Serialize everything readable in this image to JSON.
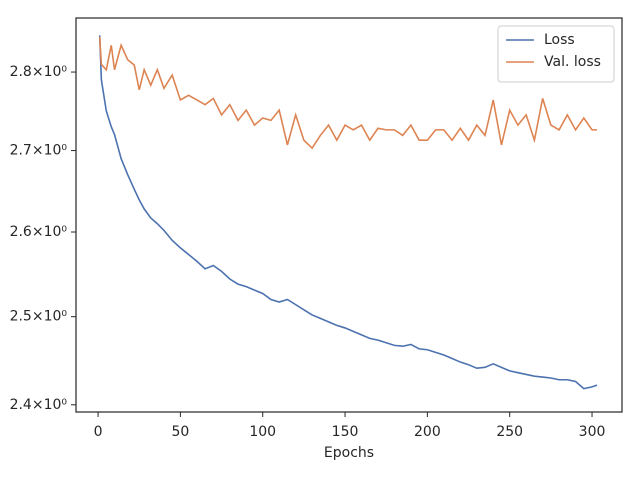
{
  "chart_data": {
    "type": "line",
    "xlabel": "Epochs",
    "x": [
      1,
      2,
      5,
      8,
      10,
      14,
      18,
      22,
      25,
      28,
      32,
      36,
      40,
      45,
      50,
      55,
      60,
      65,
      70,
      75,
      80,
      85,
      90,
      95,
      100,
      105,
      110,
      115,
      120,
      125,
      130,
      135,
      140,
      145,
      150,
      155,
      160,
      165,
      170,
      175,
      180,
      185,
      190,
      195,
      200,
      205,
      210,
      215,
      220,
      225,
      230,
      235,
      240,
      245,
      250,
      255,
      260,
      265,
      270,
      275,
      280,
      285,
      290,
      295,
      300,
      303
    ],
    "series": [
      {
        "name": "Loss",
        "color": "#4c72b0",
        "values": [
          2.848,
          2.79,
          2.75,
          2.73,
          2.72,
          2.69,
          2.67,
          2.652,
          2.639,
          2.628,
          2.617,
          2.61,
          2.602,
          2.59,
          2.581,
          2.573,
          2.565,
          2.556,
          2.56,
          2.553,
          2.544,
          2.538,
          2.535,
          2.531,
          2.527,
          2.52,
          2.517,
          2.52,
          2.514,
          2.508,
          2.502,
          2.498,
          2.494,
          2.49,
          2.487,
          2.483,
          2.479,
          2.475,
          2.473,
          2.47,
          2.467,
          2.466,
          2.468,
          2.463,
          2.462,
          2.459,
          2.456,
          2.452,
          2.448,
          2.445,
          2.441,
          2.442,
          2.446,
          2.442,
          2.438,
          2.436,
          2.434,
          2.432,
          2.431,
          2.43,
          2.428,
          2.428,
          2.426,
          2.418,
          2.42,
          2.422
        ]
      },
      {
        "name": "Val. loss",
        "color": "#dd8452",
        "values": [
          2.846,
          2.81,
          2.803,
          2.835,
          2.803,
          2.835,
          2.816,
          2.809,
          2.777,
          2.803,
          2.783,
          2.803,
          2.779,
          2.796,
          2.764,
          2.77,
          2.764,
          2.758,
          2.766,
          2.745,
          2.758,
          2.738,
          2.751,
          2.732,
          2.741,
          2.738,
          2.751,
          2.707,
          2.745,
          2.713,
          2.703,
          2.719,
          2.732,
          2.713,
          2.732,
          2.726,
          2.732,
          2.713,
          2.728,
          2.726,
          2.726,
          2.719,
          2.732,
          2.713,
          2.713,
          2.726,
          2.726,
          2.713,
          2.728,
          2.713,
          2.732,
          2.719,
          2.764,
          2.707,
          2.751,
          2.732,
          2.745,
          2.713,
          2.766,
          2.732,
          2.726,
          2.745,
          2.726,
          2.741,
          2.726,
          2.726
        ]
      }
    ],
    "xlim": [
      -13.4,
      318.2
    ],
    "xticks": [
      0,
      50,
      100,
      150,
      200,
      250,
      300
    ],
    "ylim": [
      2.392,
      2.871
    ],
    "yscale": "log",
    "yticks": [
      {
        "value": 2.4,
        "label": "2.4×10⁰"
      },
      {
        "value": 2.5,
        "label": "2.5×10⁰"
      },
      {
        "value": 2.6,
        "label": "2.6×10⁰"
      },
      {
        "value": 2.7,
        "label": "2.7×10⁰"
      },
      {
        "value": 2.8,
        "label": "2.8×10⁰"
      }
    ],
    "legend": "upper right"
  }
}
